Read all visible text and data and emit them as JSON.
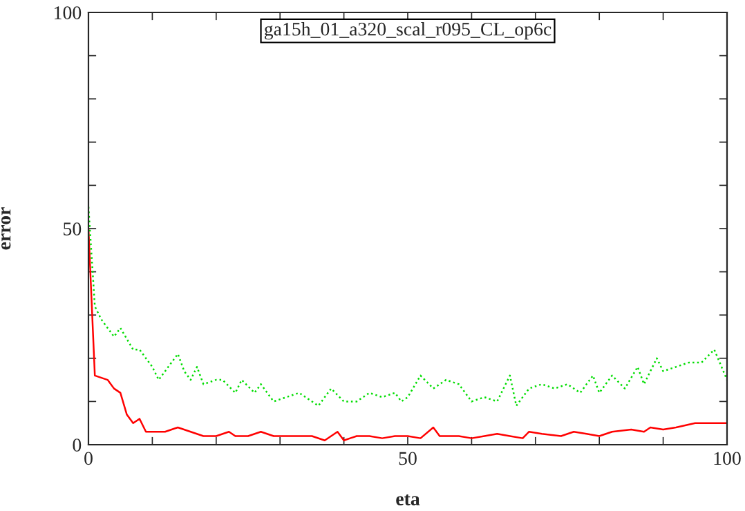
{
  "chart_data": {
    "type": "line",
    "title": "ga15h_01_a320_scal_r095_CL_op6c",
    "xlabel": "eta",
    "ylabel": "error",
    "xlim": [
      0,
      100
    ],
    "ylim": [
      0,
      100
    ],
    "xticks": [
      0,
      {
        "value": 10,
        "label": null
      },
      {
        "value": 20,
        "label": null
      },
      {
        "value": 30,
        "label": null
      },
      {
        "value": 40,
        "label": null
      },
      50,
      {
        "value": 60,
        "label": null
      },
      {
        "value": 70,
        "label": null
      },
      {
        "value": 80,
        "label": null
      },
      {
        "value": 90,
        "label": null
      },
      100
    ],
    "yticks": [
      0,
      {
        "value": 10,
        "label": null
      },
      {
        "value": 20,
        "label": null
      },
      {
        "value": 30,
        "label": null
      },
      {
        "value": 40,
        "label": null
      },
      50,
      {
        "value": 60,
        "label": null
      },
      {
        "value": 70,
        "label": null
      },
      {
        "value": 80,
        "label": null
      },
      {
        "value": 90,
        "label": null
      },
      100
    ],
    "grid": false,
    "series": [
      {
        "color": "#ff0000",
        "line_style": "solid",
        "x": [
          0,
          1,
          3,
          4,
          5,
          6,
          7,
          8,
          9,
          10,
          12,
          14,
          16,
          18,
          20,
          22,
          23,
          25,
          27,
          29,
          31,
          33,
          35,
          37,
          39,
          40,
          42,
          44,
          46,
          48,
          50,
          52,
          54,
          55,
          58,
          60,
          62,
          64,
          66,
          68,
          69,
          71,
          74,
          76,
          78,
          80,
          82,
          85,
          87,
          88,
          90,
          92,
          95,
          100
        ],
        "values": [
          50,
          16,
          15,
          13,
          12,
          7,
          5,
          6,
          3,
          3,
          3,
          4,
          3,
          2,
          2,
          3,
          2,
          2,
          3,
          2,
          2,
          2,
          2,
          1,
          3,
          1,
          2,
          2,
          1.5,
          2,
          2,
          1.5,
          4,
          2,
          2,
          1.5,
          2,
          2.5,
          2,
          1.5,
          3,
          2.5,
          2,
          3,
          2.5,
          2,
          3,
          3.5,
          3,
          4,
          3.5,
          4,
          5,
          5
        ]
      },
      {
        "color": "#00dd00",
        "line_style": "dotted",
        "x": [
          0,
          1,
          2,
          4,
          5,
          7,
          8,
          10,
          11,
          13,
          14,
          15,
          16,
          17,
          18,
          20,
          21,
          23,
          24,
          26,
          27,
          29,
          31,
          33,
          34,
          36,
          38,
          40,
          42,
          44,
          46,
          48,
          49,
          50,
          52,
          54,
          56,
          58,
          60,
          62,
          64,
          66,
          67,
          69,
          71,
          73,
          75,
          77,
          79,
          80,
          82,
          84,
          86,
          87,
          89,
          90,
          92,
          94,
          96,
          98,
          100
        ],
        "values": [
          55,
          32,
          29,
          25,
          27,
          22,
          22,
          18,
          15,
          19,
          21,
          17,
          15,
          18,
          14,
          15,
          15,
          12,
          15,
          12,
          14,
          10,
          11,
          12,
          11,
          9,
          13,
          10,
          10,
          12,
          11,
          12,
          10,
          11,
          16,
          13,
          15,
          14,
          10,
          11,
          10,
          16,
          9,
          13,
          14,
          13,
          14,
          12,
          16,
          12,
          16,
          13,
          18,
          14,
          20,
          17,
          18,
          19,
          19,
          22,
          15
        ]
      }
    ]
  }
}
